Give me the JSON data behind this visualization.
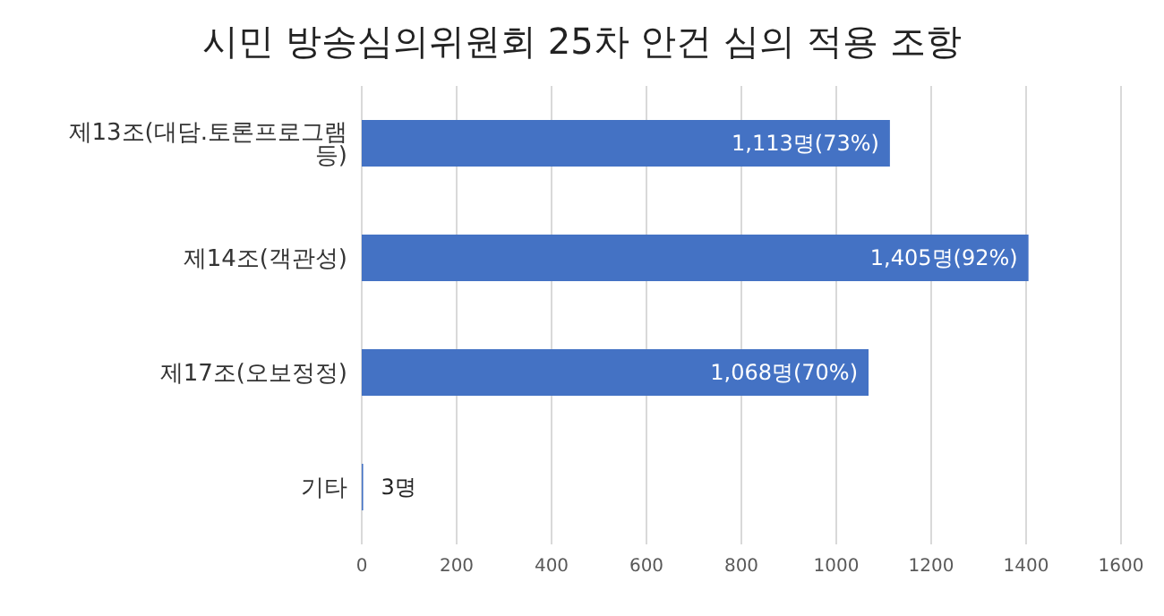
{
  "chart_data": {
    "type": "bar",
    "orientation": "horizontal",
    "title": "시민 방송심의위원회 25차 안건 심의 적용 조항",
    "categories": [
      "제13조(대담.토론프로그램 등)",
      "제14조(객관성)",
      "제17조(오보정정)",
      "기타"
    ],
    "values": [
      1113,
      1405,
      1068,
      3
    ],
    "color": "#4472c4",
    "value_labels": [
      "1,113명(73%)",
      "1,405명(92%)",
      "1,068명(70%)",
      "3명"
    ],
    "xlim": [
      0,
      1600
    ],
    "xticks": [
      0,
      200,
      400,
      600,
      800,
      1000,
      1200,
      1400,
      1600
    ],
    "grid": "x"
  }
}
